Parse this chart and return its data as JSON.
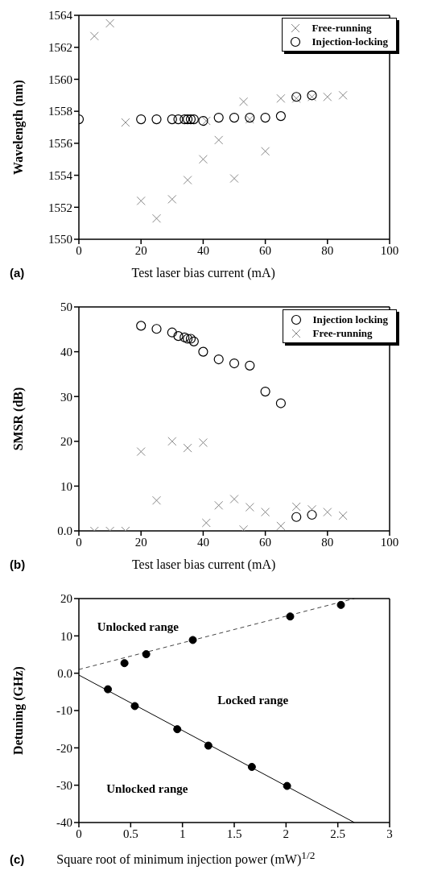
{
  "chart_data": [
    {
      "type": "scatter",
      "annotations": [
        "(a)"
      ],
      "xlabel": "Test laser bias current (mA)",
      "ylabel": "Wavelength (nm)",
      "xlim": [
        0,
        100
      ],
      "xticks": [
        0,
        20,
        40,
        60,
        80,
        100
      ],
      "ylim": [
        1550,
        1564
      ],
      "yticks": [
        1550,
        1552,
        1554,
        1556,
        1558,
        1560,
        1562,
        1564
      ],
      "legend": "top right",
      "series": [
        {
          "name": "Free-running",
          "color": "#888888",
          "marker": "cross",
          "x": [
            5,
            10,
            15,
            20,
            25,
            30,
            35,
            40,
            41,
            45,
            50,
            53,
            55,
            60,
            65,
            70,
            75,
            80,
            85
          ],
          "values": [
            1562.7,
            1563.5,
            1557.3,
            1552.4,
            1551.3,
            1552.5,
            1553.7,
            1555.0,
            1557.4,
            1556.2,
            1553.8,
            1558.6,
            1557.5,
            1555.5,
            1558.8,
            1558.8,
            1558.9,
            1558.9,
            1559.0
          ]
        },
        {
          "name": "Injection-locking",
          "color": "#000000",
          "marker": "circle",
          "x": [
            0,
            20,
            25,
            30,
            32,
            34,
            35,
            36,
            37,
            40,
            45,
            50,
            55,
            60,
            65,
            70,
            75
          ],
          "values": [
            1557.5,
            1557.5,
            1557.5,
            1557.5,
            1557.5,
            1557.5,
            1557.5,
            1557.5,
            1557.5,
            1557.4,
            1557.6,
            1557.6,
            1557.6,
            1557.6,
            1557.7,
            1558.9,
            1559.0
          ]
        }
      ]
    },
    {
      "type": "scatter",
      "annotations": [
        "(b)"
      ],
      "xlabel": "Test laser bias current (mA)",
      "ylabel": "SMSR (dB)",
      "xlim": [
        0,
        100
      ],
      "xticks": [
        0,
        20,
        40,
        60,
        80,
        100
      ],
      "ylim": [
        0,
        50
      ],
      "yticks": [
        {
          "value": 0,
          "label": "0.0"
        },
        10,
        20,
        30,
        40,
        50
      ],
      "legend": "top right",
      "series": [
        {
          "name": "Injection locking",
          "color": "#000000",
          "marker": "circle",
          "x": [
            20,
            25,
            30,
            32,
            34,
            35,
            36,
            37,
            40,
            45,
            50,
            55,
            60,
            65,
            70,
            75
          ],
          "values": [
            45.8,
            45.1,
            44.3,
            43.5,
            43.2,
            42.9,
            42.9,
            42.3,
            40.0,
            38.3,
            37.4,
            36.9,
            31.1,
            28.5,
            3.1,
            3.6
          ]
        },
        {
          "name": "Free-running",
          "color": "#888888",
          "marker": "cross",
          "x": [
            5,
            10,
            15,
            20,
            25,
            30,
            35,
            40,
            41,
            45,
            50,
            53,
            55,
            60,
            65,
            70,
            75,
            80,
            85
          ],
          "values": [
            0,
            0,
            0,
            17.7,
            6.8,
            20.0,
            18.5,
            19.7,
            1.8,
            5.7,
            7.1,
            0.3,
            5.3,
            4.2,
            1.1,
            5.4,
            4.8,
            4.2,
            3.4
          ]
        }
      ]
    },
    {
      "type": "scatter",
      "annotations": [
        "(c)",
        "Unlocked range",
        "Locked range",
        "Unlocked range"
      ],
      "xlabel": "Square root of minimum injection power (mW)$^{1/2}$",
      "ylabel": "Detuning (GHz)",
      "xlim": [
        0,
        3
      ],
      "xticks": [
        0,
        0.5,
        1,
        1.5,
        2,
        2.5,
        3
      ],
      "ylim": [
        -40,
        20
      ],
      "yticks": [
        -40,
        -30,
        -20,
        -10,
        {
          "value": 0,
          "label": "0.0"
        },
        10,
        20
      ],
      "series": [
        {
          "color": "#000000",
          "marker": "circle",
          "x": [
            0.44,
            0.65,
            1.1,
            2.04,
            2.53
          ],
          "values": [
            2.7,
            5.1,
            8.9,
            15.2,
            18.3
          ]
        },
        {
          "color": "#000000",
          "marker": "circle",
          "x": [
            0.28,
            0.54,
            0.95,
            1.25,
            1.67,
            2.01
          ],
          "values": [
            -4.3,
            -8.8,
            -15.0,
            -19.4,
            -25.1,
            -30.2
          ]
        },
        {
          "type": "line",
          "color": "#444444",
          "line_style": "dashed",
          "marker": "none",
          "x": [
            0,
            2.66
          ],
          "values": [
            1,
            20
          ]
        },
        {
          "type": "line",
          "color": "#000000",
          "line_style": "solid",
          "marker": "none",
          "x": [
            0,
            2.66
          ],
          "values": [
            -0.5,
            -40
          ]
        }
      ]
    }
  ]
}
